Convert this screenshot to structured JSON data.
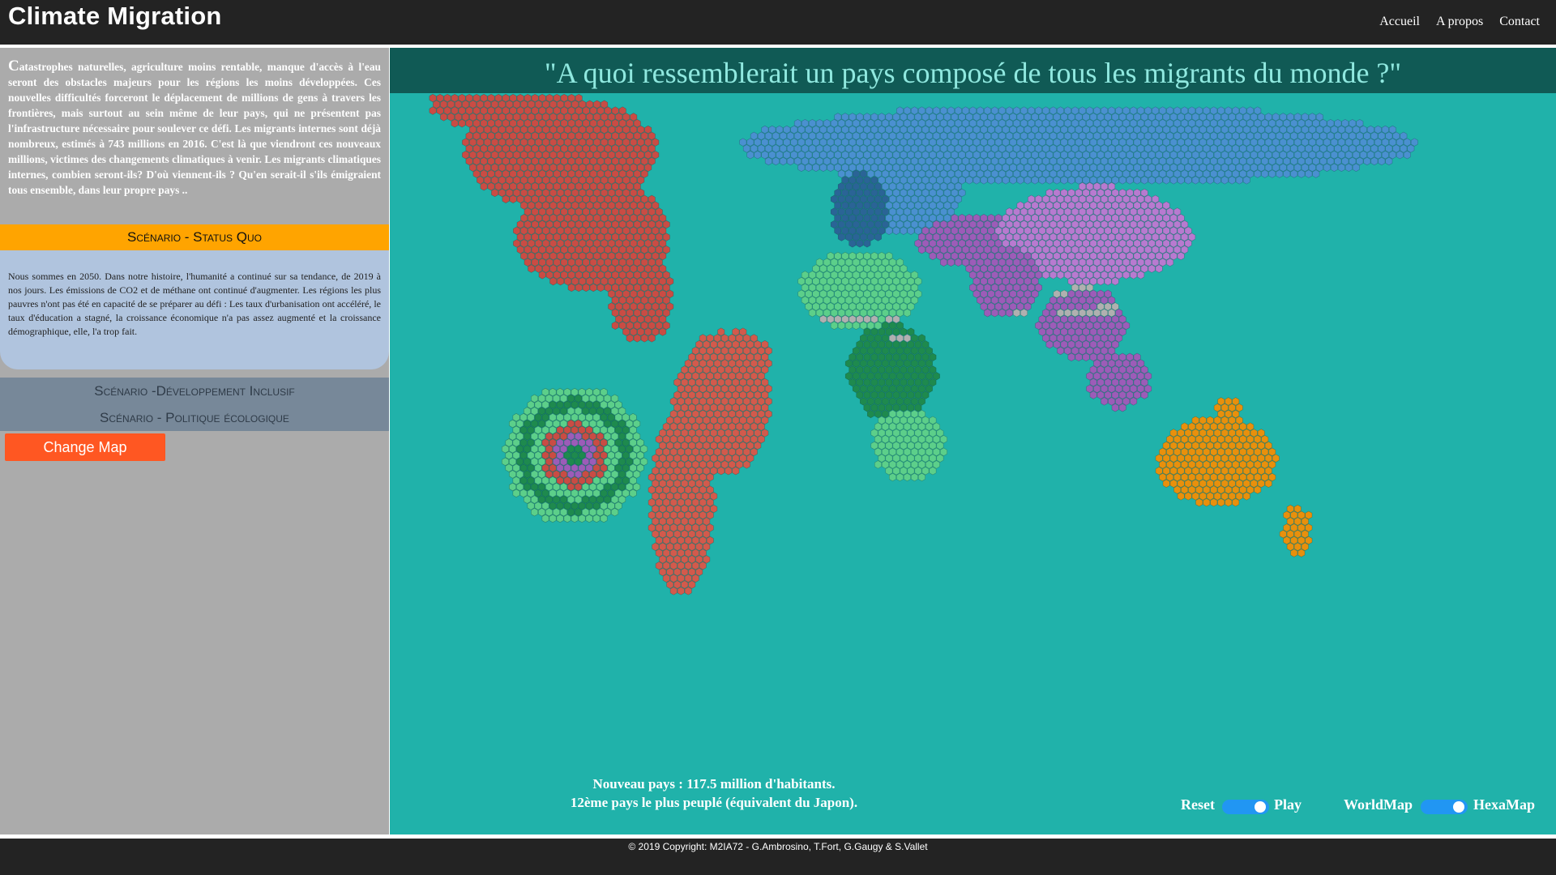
{
  "header": {
    "title": "Climate Migration",
    "nav": [
      "Accueil",
      "A propos",
      "Contact"
    ]
  },
  "sidebar": {
    "intro_first_letter": "C",
    "intro_rest": "atastrophes naturelles, agriculture moins rentable, manque d'accès à l'eau seront des obstacles majeurs pour les régions les moins développées. Ces nouvelles difficultés forceront le déplacement de millions de gens à travers les frontières, mais surtout au sein même de leur pays, qui ne présentent pas l'infrastructure nécessaire pour soulever ce défi. Les migrants internes sont déjà nombreux, estimés à 743 millions en 2016. C'est là que viendront ces nouveaux millions, victimes des changements climatiques à venir. Les migrants climatiques internes, combien seront-ils? D'où viennent-ils ? Qu'en serait-il s'ils émigraient tous ensemble, dans leur propre pays ..",
    "scenario_status_quo_title": "Scénario - Status Quo",
    "scenario_status_quo_text": "Nous sommes en 2050. Dans notre histoire, l'humanité a continué sur sa tendance, de 2019 à nos jours. Les émissions de CO2 et de méthane ont continué d'augmenter. Les régions les plus pauvres n'ont pas été en capacité de se préparer au défi : Les taux d'urbanisation ont accéléré, le taux d'éducation a stagné, la croissance économique n'a pas assez augmenté et la croissance démographique, elle, l'a trop fait.",
    "scenario_dev_title": "Scénario -Développement Inclusif",
    "scenario_eco_title": "Scénario - Politique écologique",
    "change_map_label": "Change Map"
  },
  "main": {
    "title": "\"A quoi ressemblerait un pays composé de tous les migrants du monde ?\"",
    "stats_line1": "Nouveau pays : 117.5 million d'habitants.",
    "stats_line2": "12ème pays le plus peuplé (équivalent du Japon).",
    "reset_label": "Reset",
    "play_label": "Play",
    "worldmap_label": "WorldMap",
    "hexamap_label": "HexaMap"
  },
  "footer": {
    "copyright": "© 2019 Copyright: M2IA72 - G.Ambrosino, T.Fort, G.Gaugy & S.Vallet"
  },
  "colors": {
    "header_bg": "#232323",
    "sidebar_bg": "#ababab",
    "status_quo_accent": "#ffa400",
    "panel_bg": "#b0c4de",
    "tab_bg": "#778899",
    "change_map_button": "#ff5722",
    "map_bg": "#20b2aa",
    "title_bar_bg": "#105a55",
    "toggle_on": "#2196f3",
    "americas": "#c94c44",
    "south_america": "#d25a4c",
    "europe_russia": "#4a90d0",
    "europe_dark": "#2a6496",
    "middle_east_asia": "#9c5cb8",
    "central_asia": "#b87ad0",
    "africa_north": "#5ccf8a",
    "africa_central": "#1e8a4e",
    "oceania": "#e8900c",
    "migrant_gray": "#b0b0b0"
  }
}
